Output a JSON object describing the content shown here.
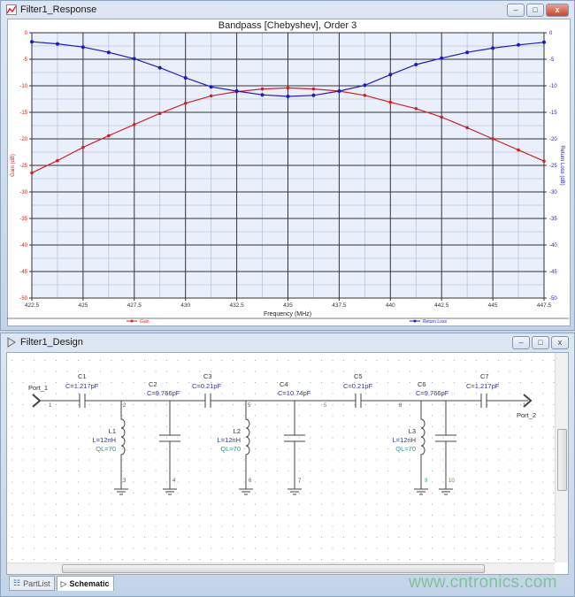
{
  "response_window": {
    "title": "Filter1_Response",
    "chart_data": {
      "type": "line",
      "title": "Bandpass [Chebyshev], Order 3",
      "xlabel": "Frequency (MHz)",
      "ylabel": "Gain (dB)",
      "y2label": "Return Loss (dB)",
      "xlim": [
        422.5,
        447.5
      ],
      "ylim": [
        -50,
        0
      ],
      "y2lim": [
        -50,
        0
      ],
      "xticks": [
        "422.5",
        "425",
        "427.5",
        "430",
        "432.5",
        "435",
        "437.5",
        "440",
        "442.5",
        "445",
        "447.5"
      ],
      "yticks": [
        "0",
        "-5",
        "-10",
        "-15",
        "-20",
        "-25",
        "-30",
        "-35",
        "-40",
        "-45",
        "-50"
      ],
      "grid": true,
      "legend": "bottom",
      "x": [
        422.5,
        423.75,
        425,
        426.25,
        427.5,
        428.75,
        430,
        431.25,
        432.5,
        433.75,
        435,
        436.25,
        437.5,
        438.75,
        440,
        441.25,
        442.5,
        443.75,
        445,
        446.25,
        447.5
      ],
      "series": [
        {
          "name": "Gain",
          "axis": "left",
          "color": "#d42020",
          "values": [
            -26.4,
            -24.1,
            -21.6,
            -19.4,
            -17.3,
            -15.2,
            -13.3,
            -11.9,
            -11.1,
            -10.6,
            -10.4,
            -10.6,
            -11.0,
            -11.8,
            -13.1,
            -14.3,
            -15.9,
            -17.9,
            -20.0,
            -22.1,
            -24.2
          ]
        },
        {
          "name": "Return Loss",
          "axis": "right",
          "color": "#1a1acc",
          "values": [
            -1.7,
            -2.1,
            -2.7,
            -3.7,
            -4.9,
            -6.6,
            -8.5,
            -10.2,
            -11.0,
            -11.7,
            -12.0,
            -11.8,
            -11.0,
            -9.9,
            -7.9,
            -6.0,
            -4.8,
            -3.7,
            -2.9,
            -2.3,
            -1.8
          ]
        }
      ]
    }
  },
  "design_window": {
    "title": "Filter1_Design",
    "ports": {
      "p1": "Port_1",
      "p2": "Port_2"
    },
    "nodes": {
      "n1a": "1",
      "n2": "2",
      "n3": "3",
      "n4": "4",
      "n5a": "5",
      "n6": "6",
      "n7": "7",
      "n5b": "5",
      "n8": "8",
      "n9": "9",
      "n10": "10",
      "n1b": "1"
    },
    "components": {
      "C1": {
        "name": "C1",
        "value": "C=1.217pF"
      },
      "C2": {
        "name": "C2",
        "value": "C=9.766pF"
      },
      "C3": {
        "name": "C3",
        "value": "C=0.21pF"
      },
      "C4": {
        "name": "C4",
        "value": "C=10.74pF"
      },
      "C5": {
        "name": "C5",
        "value": "C=0.21pF"
      },
      "C6": {
        "name": "C6",
        "value": "C=9.766pF"
      },
      "C7": {
        "name": "C7",
        "value": "C=1.217pF"
      },
      "L1": {
        "name": "L1",
        "value": "L=12nH",
        "q": "QL=70"
      },
      "L2": {
        "name": "L2",
        "value": "L=12nH",
        "q": "QL=70"
      },
      "L3": {
        "name": "L3",
        "value": "L=12nH",
        "q": "QL=70"
      }
    },
    "tabs": [
      {
        "label": "PartList"
      },
      {
        "label": "Schematic",
        "active": true
      }
    ]
  },
  "window_controls": {
    "minimize": "–",
    "maximize": "□",
    "close": "x"
  },
  "watermark": "www.cntronics.com"
}
